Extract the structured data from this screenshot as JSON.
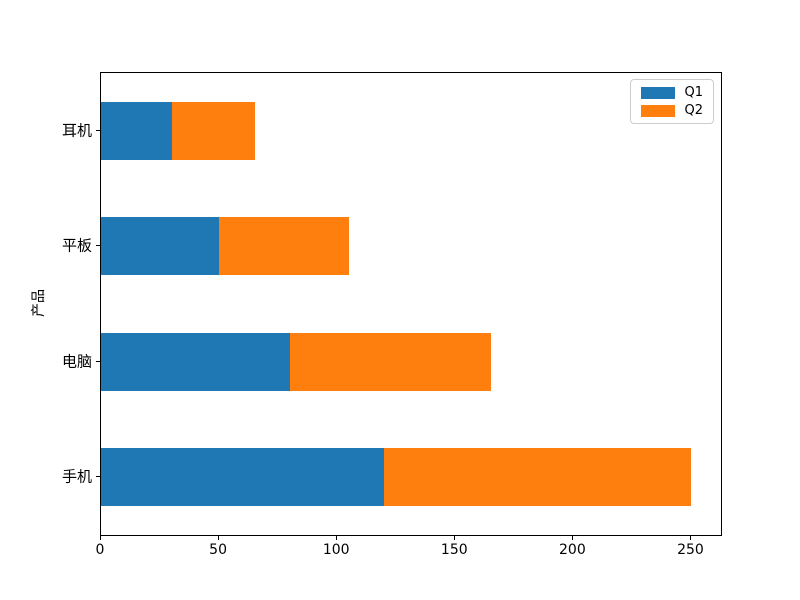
{
  "chart_data": {
    "type": "bar",
    "orientation": "horizontal",
    "stacked": true,
    "title": "",
    "xlabel": "",
    "ylabel": "产品",
    "categories": [
      "手机",
      "电脑",
      "平板",
      "耳机"
    ],
    "series": [
      {
        "name": "Q1",
        "color": "#1f77b4",
        "values": [
          120,
          80,
          50,
          30
        ]
      },
      {
        "name": "Q2",
        "color": "#ff7f0e",
        "values": [
          130,
          85,
          55,
          35
        ]
      }
    ],
    "totals": [
      250,
      165,
      105,
      65
    ],
    "xticks": [
      0,
      50,
      100,
      150,
      200,
      250
    ],
    "xlim": [
      0,
      262.5
    ],
    "ylim": [
      -0.5,
      3.5
    ],
    "bar_height_fraction": 0.5,
    "grid": false,
    "legend": {
      "position": "upper right",
      "entries": [
        "Q1",
        "Q2"
      ]
    },
    "axis_color": "#000000",
    "text_color": "#000000",
    "background_color": "#ffffff"
  }
}
